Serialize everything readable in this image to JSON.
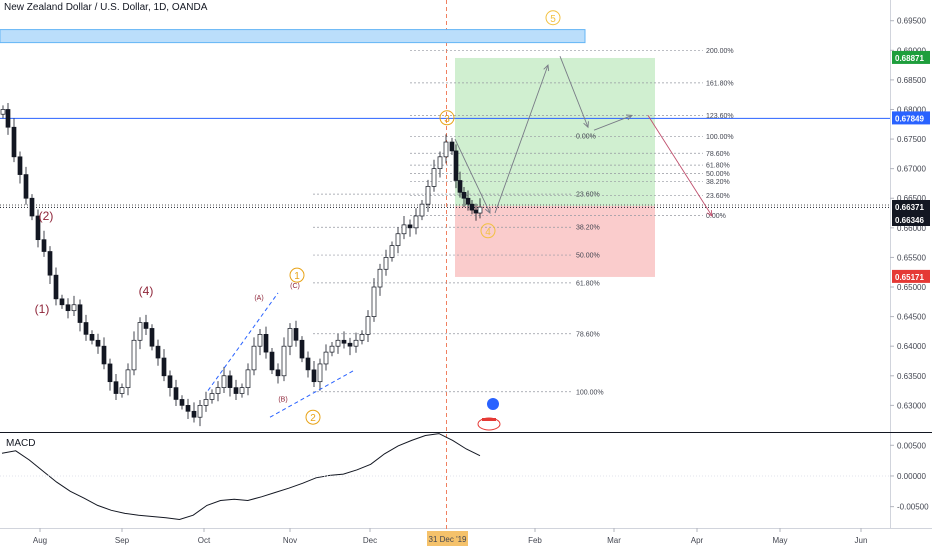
{
  "header": {
    "title": "New Zealand Dollar / U.S. Dollar, 1D, OANDA"
  },
  "macd": {
    "label": "MACD",
    "ticks": [
      "0.00500",
      "0.00000",
      "-0.00500"
    ]
  },
  "colors": {
    "up": "#26a69a",
    "down": "#131722",
    "blue": "#2962ff",
    "green_zone": "#c8ecc8",
    "red_zone": "#f9c6c6",
    "badge_green": "#1e9e3c",
    "badge_blue": "#2962ff",
    "badge_red": "#e53935",
    "badge_dark": "#131722",
    "wave_red": "#8e2438",
    "wave_orange": "#f2c140"
  },
  "chart_data": {
    "type": "candlestick",
    "symbol": "NZD/USD",
    "interval": "1D",
    "ylim": [
      0.6255,
      0.6985
    ],
    "y_ticks": [
      "0.69500",
      "0.69000",
      "0.68500",
      "0.68000",
      "0.67500",
      "0.67000",
      "0.66500",
      "0.66000",
      "0.65500",
      "0.65000",
      "0.64500",
      "0.64000",
      "0.63500",
      "0.63000"
    ],
    "x_ticks": [
      "Aug",
      "Sep",
      "Oct",
      "Nov",
      "Dec",
      "Feb",
      "Mar",
      "Apr",
      "May",
      "Jun"
    ],
    "x_ticks_highlight": "31 Dec '19",
    "price_badges": [
      {
        "value": "0.68871",
        "color": "badge_green"
      },
      {
        "value": "0.67849",
        "color": "badge_blue"
      },
      {
        "value": "0.66371",
        "color": "badge_dark"
      },
      {
        "value": "0.66346",
        "color": "badge_dark"
      },
      {
        "value": "0.65171",
        "color": "badge_red"
      }
    ],
    "fib_left": [
      {
        "label": "23.60%",
        "price": 0.6657
      },
      {
        "label": "38.20%",
        "price": 0.6601
      },
      {
        "label": "50.00%",
        "price": 0.6554
      },
      {
        "label": "61.80%",
        "price": 0.6507
      },
      {
        "label": "78.60%",
        "price": 0.6421
      },
      {
        "label": "100.00%",
        "price": 0.6323
      }
    ],
    "fib_right": [
      {
        "label": "200.00%",
        "price": 0.69
      },
      {
        "label": "161.80%",
        "price": 0.6845
      },
      {
        "label": "123.60%",
        "price": 0.679
      },
      {
        "label": "100.00%",
        "price": 0.6754
      },
      {
        "label": "78.60%",
        "price": 0.6726
      },
      {
        "label": "61.80%",
        "price": 0.6706
      },
      {
        "label": "50.00%",
        "price": 0.6692
      },
      {
        "label": "38.20%",
        "price": 0.6678
      },
      {
        "label": "23.60%",
        "price": 0.6655
      },
      {
        "label": "0.00%",
        "price": 0.6621
      }
    ],
    "fib_extra": [
      {
        "label": "0.00%",
        "price": 0.6755
      }
    ],
    "waves": [
      {
        "label": "(1)",
        "style": "red"
      },
      {
        "label": "(2)",
        "style": "red"
      },
      {
        "label": "(4)",
        "style": "red"
      },
      {
        "label": "(A)",
        "style": "small-red"
      },
      {
        "label": "(B)",
        "style": "small-red"
      },
      {
        "label": "(C)",
        "style": "small-red"
      },
      {
        "label": "1",
        "style": "circle"
      },
      {
        "label": "2",
        "style": "circle"
      },
      {
        "label": "3",
        "style": "circle"
      },
      {
        "label": "4",
        "style": "circle"
      },
      {
        "label": "5",
        "style": "circle"
      }
    ],
    "horizontal_levels": {
      "blue_line": 0.67849,
      "dotted_current": 0.66346
    },
    "zones": {
      "blue_band": [
        0.6913,
        0.6935
      ],
      "green_target": [
        0.6637,
        0.6887
      ],
      "red_stop": [
        0.6517,
        0.6637
      ]
    },
    "macd_ylim": [
      -0.0075,
      0.007
    ],
    "macd_series": [
      0.0037,
      0.0041,
      0.0026,
      0.0008,
      -0.001,
      -0.0025,
      -0.0036,
      -0.0048,
      -0.0056,
      -0.0061,
      -0.0064,
      -0.0066,
      -0.0068,
      -0.0071,
      -0.0064,
      -0.0048,
      -0.004,
      -0.0038,
      -0.004,
      -0.0034,
      -0.0027,
      -0.002,
      -0.0012,
      -0.0003,
      0.0001,
      0.0003,
      0.001,
      0.0019,
      0.0036,
      0.0049,
      0.0058,
      0.0066,
      0.0069,
      0.0058,
      0.0044,
      0.0033
    ]
  }
}
